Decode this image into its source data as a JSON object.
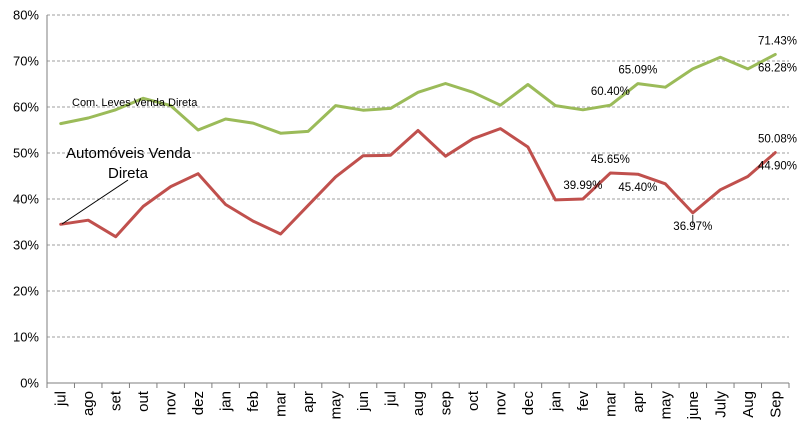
{
  "chart_data": {
    "type": "line",
    "categories": [
      "jul",
      "ago",
      "set",
      "out",
      "nov",
      "dez",
      "jan",
      "feb",
      "mar",
      "apr",
      "may",
      "jun",
      "jul",
      "aug",
      "sep",
      "oct",
      "nov",
      "dec",
      "jan",
      "fev",
      "mar",
      "apr",
      "may",
      "june",
      "July",
      "Aug",
      "Sep"
    ],
    "ylim": [
      0,
      80
    ],
    "yticks": [
      "0%",
      "10%",
      "20%",
      "30%",
      "40%",
      "50%",
      "60%",
      "70%",
      "80%"
    ],
    "grid": true,
    "series": [
      {
        "name": "Com. Leves Venda Direta",
        "color": "#9bbb59",
        "values": [
          56.4,
          57.6,
          59.4,
          61.9,
          60.3,
          55.0,
          57.4,
          56.5,
          54.3,
          54.7,
          60.3,
          59.3,
          59.7,
          63.2,
          65.1,
          63.2,
          60.4,
          64.9,
          60.3,
          59.4,
          60.4,
          65.09,
          64.3,
          68.28,
          70.8,
          68.28,
          71.43
        ]
      },
      {
        "name": "Automóveis Venda Direta",
        "color": "#c0504d",
        "values": [
          34.5,
          35.4,
          31.8,
          38.4,
          42.7,
          45.5,
          38.8,
          35.2,
          32.4,
          38.6,
          44.8,
          49.4,
          49.5,
          54.9,
          49.3,
          53.1,
          55.3,
          51.3,
          39.8,
          39.99,
          45.65,
          45.4,
          43.3,
          36.97,
          42.0,
          44.9,
          50.08
        ]
      }
    ],
    "annotations": [
      {
        "text": "60.40%",
        "series": 0,
        "index": 20,
        "position": "above"
      },
      {
        "text": "65.09%",
        "series": 0,
        "index": 21,
        "position": "above"
      },
      {
        "text": "71.43%",
        "series": 0,
        "index": 26,
        "position": "above"
      },
      {
        "text": "68.28%",
        "series": 0,
        "index": 26,
        "position": "below"
      },
      {
        "text": "39.99%",
        "series": 1,
        "index": 19,
        "position": "above"
      },
      {
        "text": "45.65%",
        "series": 1,
        "index": 20,
        "position": "above"
      },
      {
        "text": "45.40%",
        "series": 1,
        "index": 21,
        "position": "below"
      },
      {
        "text": "36.97%",
        "series": 1,
        "index": 23,
        "position": "below"
      },
      {
        "text": "50.08%",
        "series": 1,
        "index": 26,
        "position": "above"
      },
      {
        "text": "44.90%",
        "series": 1,
        "index": 26,
        "position": "below"
      }
    ],
    "series_labels": {
      "com_leves": "Com. Leves Venda Direta",
      "automoveis_line1": "Automóveis Venda",
      "automoveis_line2": "Direta"
    }
  }
}
